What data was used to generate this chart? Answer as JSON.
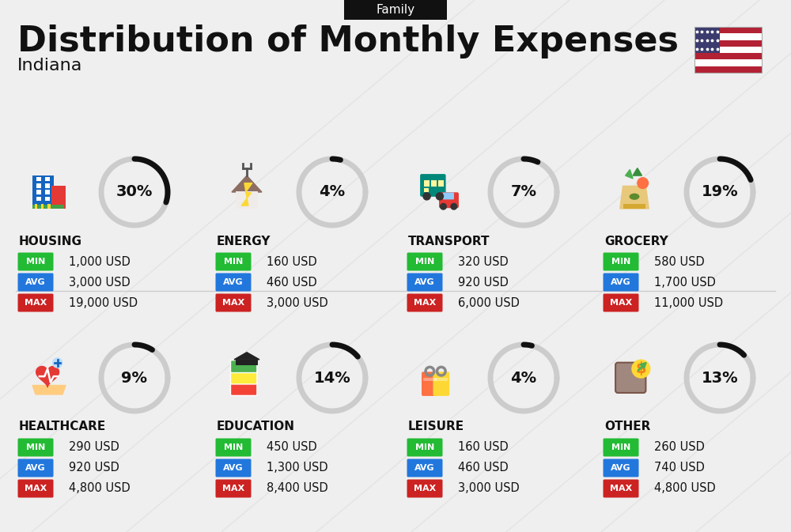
{
  "title": "Distribution of Monthly Expenses",
  "subtitle": "Indiana",
  "family_label": "Family",
  "bg_color": "#efefef",
  "categories": [
    {
      "name": "HOUSING",
      "pct": 30,
      "min_val": "1,000 USD",
      "avg_val": "3,000 USD",
      "max_val": "19,000 USD",
      "row": 0,
      "col": 0
    },
    {
      "name": "ENERGY",
      "pct": 4,
      "min_val": "160 USD",
      "avg_val": "460 USD",
      "max_val": "3,000 USD",
      "row": 0,
      "col": 1
    },
    {
      "name": "TRANSPORT",
      "pct": 7,
      "min_val": "320 USD",
      "avg_val": "920 USD",
      "max_val": "6,000 USD",
      "row": 0,
      "col": 2
    },
    {
      "name": "GROCERY",
      "pct": 19,
      "min_val": "580 USD",
      "avg_val": "1,700 USD",
      "max_val": "11,000 USD",
      "row": 0,
      "col": 3
    },
    {
      "name": "HEALTHCARE",
      "pct": 9,
      "min_val": "290 USD",
      "avg_val": "920 USD",
      "max_val": "4,800 USD",
      "row": 1,
      "col": 0
    },
    {
      "name": "EDUCATION",
      "pct": 14,
      "min_val": "450 USD",
      "avg_val": "1,300 USD",
      "max_val": "8,400 USD",
      "row": 1,
      "col": 1
    },
    {
      "name": "LEISURE",
      "pct": 4,
      "min_val": "160 USD",
      "avg_val": "460 USD",
      "max_val": "3,000 USD",
      "row": 1,
      "col": 2
    },
    {
      "name": "OTHER",
      "pct": 13,
      "min_val": "260 USD",
      "avg_val": "740 USD",
      "max_val": "4,800 USD",
      "row": 1,
      "col": 3
    }
  ],
  "min_color": "#22bb33",
  "avg_color": "#2277dd",
  "max_color": "#cc2222",
  "dark_color": "#111111",
  "circle_dark": "#111111",
  "circle_light": "#cccccc",
  "stripe_colors": [
    "#B22234",
    "#FFFFFF"
  ],
  "canton_color": "#3C3B6E"
}
